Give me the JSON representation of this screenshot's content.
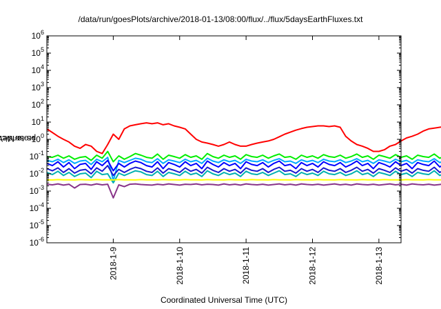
{
  "page": {
    "title": "/data/run/goesPlots/archive/2018-01-13/08:00/flux/../flux/5daysEarthFluxes.txt"
  },
  "chart_data": {
    "type": "line",
    "title": "/data/run/goesPlots/archive/2018-01-13/08:00/flux/../flux/5daysEarthFluxes.txt",
    "xlabel": "Coordinated Universal Time (UTC)",
    "ylabel": {
      "pre": "protons/cm",
      "sup": "2",
      "post": "-s-sr-MeV"
    },
    "yscale": "log",
    "ylim": [
      1e-06,
      1000000.0
    ],
    "xlim": [
      "2018-01-08 00:00",
      "2018-01-13 08:00"
    ],
    "xticks": [
      "2018-1-9",
      "2018-1-10",
      "2018-1-11",
      "2018-1-12",
      "2018-1-13"
    ],
    "ytick_exponents": [
      -6,
      -5,
      -4,
      -3,
      -2,
      -1,
      0,
      1,
      2,
      3,
      4,
      5,
      6
    ],
    "grid": false,
    "legend": "none",
    "x_step_hours": 2,
    "series": [
      {
        "color": "#ff0000",
        "values": [
          4,
          2.5,
          1.5,
          1,
          0.7,
          0.4,
          0.3,
          0.5,
          0.4,
          0.2,
          0.15,
          0.5,
          2,
          1,
          4,
          6,
          7,
          8,
          9,
          8,
          9,
          7,
          8,
          6,
          5,
          4,
          2,
          1,
          0.7,
          0.6,
          0.5,
          0.4,
          0.5,
          0.7,
          0.5,
          0.4,
          0.4,
          0.5,
          0.6,
          0.7,
          0.8,
          1,
          1.4,
          2,
          2.6,
          3.4,
          4.2,
          5,
          5.5,
          6,
          6,
          5.5,
          6,
          5,
          1.5,
          0.8,
          0.5,
          0.4,
          0.3,
          0.2,
          0.2,
          0.25,
          0.4,
          0.5,
          0.8,
          1.2,
          1.5,
          2,
          3,
          4,
          4.5,
          5,
          5.5,
          6,
          6,
          6,
          6,
          5.5,
          5,
          4,
          2,
          1,
          0.5,
          0.4,
          0.3,
          0.2,
          0.25,
          0.3,
          0.4,
          0.5,
          0.6,
          0.8,
          1,
          1.5,
          2,
          3,
          4,
          5,
          6,
          6,
          5.5,
          5,
          4.5,
          4,
          3,
          2,
          1,
          0.6,
          0.5,
          0.3,
          0.3,
          0.3,
          0.35,
          0.35,
          0.4,
          0.5,
          0.8,
          1.2,
          2,
          3,
          5,
          8,
          10,
          9,
          8,
          7,
          6,
          5,
          4,
          3,
          2.5,
          2,
          1.5,
          1,
          0.3,
          0.18,
          0.2,
          0.25
        ]
      },
      {
        "color": "#00ee00",
        "values": [
          0.1,
          0.09,
          0.12,
          0.08,
          0.11,
          0.07,
          0.09,
          0.1,
          0.06,
          0.12,
          0.08,
          0.2,
          0.05,
          0.11,
          0.07,
          0.1,
          0.15,
          0.12,
          0.09,
          0.08,
          0.14,
          0.07,
          0.12,
          0.1,
          0.08,
          0.13,
          0.09,
          0.11,
          0.07,
          0.15,
          0.1,
          0.08,
          0.12,
          0.09,
          0.11,
          0.07,
          0.13,
          0.1,
          0.09,
          0.12,
          0.08,
          0.11,
          0.14,
          0.09,
          0.1,
          0.07,
          0.12,
          0.09,
          0.11,
          0.08,
          0.13,
          0.1,
          0.09,
          0.12,
          0.08,
          0.1,
          0.14,
          0.09,
          0.11,
          0.07,
          0.12,
          0.1,
          0.08,
          0.13,
          0.09,
          0.11,
          0.07,
          0.12,
          0.1,
          0.09,
          0.14,
          0.08,
          0.11,
          0.1,
          0.12,
          0.09,
          0.08,
          0.13,
          0.1,
          0.11,
          0.2,
          0.09,
          0.12,
          0.08,
          0.1,
          0.13,
          0.09,
          0.11,
          0.07,
          0.12,
          0.1,
          0.09,
          0.14,
          0.08,
          0.11,
          0.1,
          0.12,
          0.09,
          0.08,
          0.13,
          0.1,
          0.11,
          0.07,
          0.12,
          0.09,
          0.1,
          0.14,
          0.08,
          0.11,
          0.1,
          0.12,
          0.09,
          0.08,
          0.13,
          0.1,
          0.11,
          0.09,
          0.12,
          0.08,
          0.1,
          0.13,
          0.09,
          0.11,
          0.1,
          0.12,
          0.09,
          0.08,
          0.12,
          0.1,
          0.11,
          0.09,
          0.1,
          0.12,
          0.09,
          0.1,
          0.11
        ]
      },
      {
        "color": "#00aaff",
        "values": [
          0.06,
          0.05,
          0.07,
          0.045,
          0.065,
          0.04,
          0.055,
          0.06,
          0.035,
          0.07,
          0.05,
          0.09,
          0.004,
          0.06,
          0.045,
          0.06,
          0.08,
          0.07,
          0.05,
          0.045,
          0.075,
          0.04,
          0.065,
          0.055,
          0.045,
          0.07,
          0.05,
          0.06,
          0.04,
          0.08,
          0.055,
          0.045,
          0.065,
          0.05,
          0.06,
          0.04,
          0.07,
          0.055,
          0.05,
          0.065,
          0.045,
          0.06,
          0.075,
          0.05,
          0.055,
          0.04,
          0.065,
          0.05,
          0.06,
          0.045,
          0.07,
          0.055,
          0.05,
          0.065,
          0.045,
          0.055,
          0.075,
          0.05,
          0.06,
          0.04,
          0.065,
          0.055,
          0.045,
          0.07,
          0.05,
          0.06,
          0.04,
          0.065,
          0.055,
          0.05,
          0.075,
          0.045,
          0.06,
          0.055,
          0.065,
          0.05,
          0.045,
          0.07,
          0.055,
          0.06,
          0.09,
          0.05,
          0.065,
          0.045,
          0.055,
          0.07,
          0.05,
          0.06,
          0.04,
          0.065,
          0.055,
          0.05,
          0.075,
          0.045,
          0.06,
          0.055,
          0.065,
          0.05,
          0.045,
          0.07,
          0.055,
          0.06,
          0.04,
          0.065,
          0.05,
          0.055,
          0.075,
          0.045,
          0.06,
          0.055,
          0.065,
          0.05,
          0.045,
          0.07,
          0.055,
          0.06,
          0.05,
          0.065,
          0.045,
          0.055,
          0.07,
          0.05,
          0.06,
          0.055,
          0.065,
          0.05,
          0.045,
          0.065,
          0.055,
          0.06,
          0.05,
          0.055,
          0.065,
          0.05,
          0.055,
          0.06
        ]
      },
      {
        "color": "#0000ff",
        "values": [
          0.04,
          0.03,
          0.05,
          0.025,
          0.045,
          0.02,
          0.035,
          0.04,
          0.018,
          0.05,
          0.03,
          0.06,
          0.015,
          0.04,
          0.025,
          0.04,
          0.055,
          0.045,
          0.03,
          0.025,
          0.05,
          0.02,
          0.045,
          0.035,
          0.025,
          0.05,
          0.03,
          0.04,
          0.02,
          0.055,
          0.035,
          0.025,
          0.045,
          0.03,
          0.04,
          0.02,
          0.05,
          0.035,
          0.03,
          0.045,
          0.025,
          0.04,
          0.055,
          0.03,
          0.035,
          0.02,
          0.045,
          0.03,
          0.04,
          0.025,
          0.05,
          0.035,
          0.03,
          0.045,
          0.025,
          0.035,
          0.055,
          0.03,
          0.04,
          0.02,
          0.045,
          0.035,
          0.025,
          0.05,
          0.03,
          0.04,
          0.02,
          0.045,
          0.035,
          0.03,
          0.055,
          0.025,
          0.04,
          0.035,
          0.045,
          0.03,
          0.025,
          0.05,
          0.035,
          0.04,
          0.06,
          0.03,
          0.045,
          0.025,
          0.035,
          0.05,
          0.03,
          0.04,
          0.02,
          0.045,
          0.035,
          0.03,
          0.055,
          0.025,
          0.04,
          0.035,
          0.045,
          0.03,
          0.025,
          0.05,
          0.035,
          0.04,
          0.02,
          0.045,
          0.03,
          0.035,
          0.055,
          0.025,
          0.04,
          0.035,
          0.045,
          0.03,
          0.025,
          0.05,
          0.035,
          0.04,
          0.03,
          0.045,
          0.025,
          0.035,
          0.05,
          0.03,
          0.04,
          0.035,
          0.045,
          0.03,
          0.025,
          0.045,
          0.035,
          0.04,
          0.03,
          0.035,
          0.045,
          0.03,
          0.035,
          0.04
        ]
      },
      {
        "color": "#1818d0",
        "values": [
          0.02,
          0.015,
          0.022,
          0.012,
          0.02,
          0.011,
          0.016,
          0.018,
          0.01,
          0.022,
          0.014,
          0.03,
          0.008,
          0.018,
          0.012,
          0.018,
          0.024,
          0.02,
          0.014,
          0.012,
          0.022,
          0.011,
          0.02,
          0.016,
          0.012,
          0.022,
          0.014,
          0.018,
          0.011,
          0.024,
          0.016,
          0.012,
          0.02,
          0.014,
          0.018,
          0.011,
          0.022,
          0.016,
          0.014,
          0.02,
          0.012,
          0.018,
          0.024,
          0.014,
          0.016,
          0.011,
          0.02,
          0.014,
          0.018,
          0.012,
          0.022,
          0.016,
          0.014,
          0.02,
          0.012,
          0.016,
          0.024,
          0.014,
          0.018,
          0.011,
          0.02,
          0.016,
          0.012,
          0.022,
          0.014,
          0.018,
          0.011,
          0.02,
          0.016,
          0.014,
          0.024,
          0.012,
          0.018,
          0.016,
          0.02,
          0.014,
          0.012,
          0.022,
          0.016,
          0.018,
          0.03,
          0.014,
          0.02,
          0.012,
          0.016,
          0.022,
          0.014,
          0.018,
          0.011,
          0.02,
          0.016,
          0.014,
          0.024,
          0.012,
          0.018,
          0.016,
          0.02,
          0.014,
          0.012,
          0.022,
          0.016,
          0.018,
          0.011,
          0.02,
          0.014,
          0.016,
          0.024,
          0.012,
          0.018,
          0.016,
          0.02,
          0.014,
          0.012,
          0.022,
          0.016,
          0.018,
          0.014,
          0.02,
          0.012,
          0.016,
          0.022,
          0.014,
          0.018,
          0.016,
          0.02,
          0.014,
          0.012,
          0.02,
          0.016,
          0.018,
          0.014,
          0.016,
          0.02,
          0.014,
          0.016,
          0.018
        ]
      },
      {
        "color": "#00b0b0",
        "values": [
          0.012,
          0.009,
          0.014,
          0.008,
          0.012,
          0.007,
          0.01,
          0.011,
          0.006,
          0.014,
          0.009,
          0.01,
          0.003,
          0.011,
          0.008,
          0.011,
          0.015,
          0.013,
          0.009,
          0.008,
          0.014,
          0.007,
          0.012,
          0.01,
          0.008,
          0.014,
          0.009,
          0.011,
          0.007,
          0.015,
          0.01,
          0.008,
          0.012,
          0.009,
          0.011,
          0.007,
          0.014,
          0.01,
          0.009,
          0.012,
          0.008,
          0.011,
          0.015,
          0.009,
          0.01,
          0.007,
          0.012,
          0.009,
          0.011,
          0.008,
          0.014,
          0.01,
          0.009,
          0.012,
          0.008,
          0.01,
          0.015,
          0.009,
          0.011,
          0.007,
          0.012,
          0.01,
          0.008,
          0.014,
          0.009,
          0.011,
          0.007,
          0.012,
          0.01,
          0.009,
          0.015,
          0.008,
          0.011,
          0.01,
          0.012,
          0.009,
          0.008,
          0.014,
          0.01,
          0.011,
          0.003,
          0.009,
          0.012,
          0.008,
          0.01,
          0.014,
          0.009,
          0.011,
          0.007,
          0.012,
          0.01,
          0.009,
          0.015,
          0.008,
          0.011,
          0.01,
          0.012,
          0.009,
          0.008,
          0.014,
          0.01,
          0.011,
          0.007,
          0.012,
          0.009,
          0.01,
          0.015,
          0.008,
          0.011,
          0.01,
          0.012,
          0.009,
          0.008,
          0.014,
          0.01,
          0.011,
          0.009,
          0.012,
          0.008,
          0.01,
          0.014,
          0.009,
          0.011,
          0.01,
          0.012,
          0.009,
          0.008,
          0.012,
          0.01,
          0.011,
          0.009,
          0.01,
          0.012,
          0.009,
          0.01,
          0.011
        ]
      },
      {
        "color": "#ffff00",
        "values": [
          0.0045,
          0.0044,
          0.0046,
          0.0045,
          0.0045,
          0.0044,
          0.0046,
          0.0045,
          0.0044,
          0.0046,
          0.0045,
          0.0045,
          0.0044,
          0.0046,
          0.0045,
          0.0045,
          0.0044,
          0.0046,
          0.0045,
          0.0045,
          0.0044,
          0.0046,
          0.0045,
          0.0045,
          0.0044,
          0.0046,
          0.0045,
          0.0045,
          0.0044,
          0.0046,
          0.0045,
          0.0045,
          0.0044,
          0.0046,
          0.0045,
          0.0045,
          0.0044,
          0.0046,
          0.0045,
          0.0045,
          0.0044,
          0.0046,
          0.0045,
          0.0045,
          0.0044,
          0.0046,
          0.0045,
          0.0045,
          0.0044,
          0.0046,
          0.0045,
          0.0045,
          0.0044,
          0.0046,
          0.0045,
          0.0045,
          0.0044,
          0.0046,
          0.0045,
          0.0045,
          0.0044,
          0.0046,
          0.0045,
          0.0045,
          0.0044,
          0.0046,
          0.0045,
          0.0045,
          0.0044,
          0.0046,
          0.0045,
          0.0045,
          0.0044,
          0.0046,
          0.0045,
          0.0045,
          0.0044,
          0.0046,
          0.0045,
          0.0045,
          0.0044,
          0.0046,
          0.0045,
          0.0045,
          0.0044,
          0.0046,
          0.0045,
          0.0045,
          0.0044,
          0.0046,
          0.0045,
          0.0045,
          0.0044,
          0.0046,
          0.0045,
          0.0045,
          0.0044,
          0.0046,
          0.0045,
          0.0045,
          0.0044,
          0.0046,
          0.0045,
          0.0045,
          0.0044,
          0.0046,
          0.0045,
          0.0045,
          0.0044,
          0.0046,
          0.0045,
          0.0045,
          0.0044,
          0.0046,
          0.0045,
          0.0045,
          0.0044,
          0.0046,
          0.0045,
          0.0045,
          0.0044,
          0.0046,
          0.0045,
          0.0045,
          0.0044,
          0.0046,
          0.0045,
          0.0045,
          0.0044,
          0.0046,
          0.0045,
          0.0045,
          0.0044,
          0.0046,
          0.0045,
          0.0045
        ]
      },
      {
        "color": "#883388",
        "values": [
          0.0025,
          0.0023,
          0.0026,
          0.0022,
          0.0025,
          0.0015,
          0.0024,
          0.0025,
          0.0022,
          0.0026,
          0.0023,
          0.0025,
          0.0004,
          0.0023,
          0.0018,
          0.0025,
          0.0026,
          0.0024,
          0.0023,
          0.0022,
          0.0025,
          0.0023,
          0.0026,
          0.0024,
          0.0022,
          0.0025,
          0.0024,
          0.0026,
          0.0023,
          0.0025,
          0.0024,
          0.0022,
          0.0026,
          0.0023,
          0.0025,
          0.0022,
          0.0026,
          0.0024,
          0.0023,
          0.0025,
          0.0022,
          0.0024,
          0.0026,
          0.0023,
          0.0025,
          0.0022,
          0.0026,
          0.0024,
          0.0023,
          0.0025,
          0.0022,
          0.0024,
          0.0026,
          0.0023,
          0.0025,
          0.0022,
          0.0026,
          0.0024,
          0.0023,
          0.0025,
          0.0022,
          0.0024,
          0.0026,
          0.0023,
          0.0025,
          0.0022,
          0.0026,
          0.0024,
          0.0023,
          0.0025,
          0.0022,
          0.0024,
          0.0026,
          0.0023,
          0.0025,
          0.0024,
          0.0022,
          0.0026,
          0.0023,
          0.0025,
          0.0015,
          0.0024,
          0.0026,
          0.0023,
          0.0025,
          0.0022,
          0.0026,
          0.0024,
          0.0023,
          0.0025,
          0.0022,
          0.0024,
          0.0026,
          0.0023,
          0.0025,
          0.0024,
          0.0022,
          0.0026,
          0.0023,
          0.0025,
          0.0022,
          0.0024,
          0.0026,
          0.0023,
          0.0025,
          0.0022,
          0.0026,
          0.0024,
          0.0023,
          0.0025,
          0.0022,
          0.0024,
          0.0026,
          0.0023,
          0.0025,
          0.0024,
          0.0022,
          0.0026,
          0.0023,
          0.0025,
          0.0022,
          0.0024,
          0.0026,
          0.0023,
          0.0025,
          0.0024,
          0.0022,
          0.0025,
          0.0023,
          0.0024,
          0.0022,
          0.0024,
          0.0025,
          0.0023,
          0.0024,
          0.0023
        ]
      }
    ]
  }
}
